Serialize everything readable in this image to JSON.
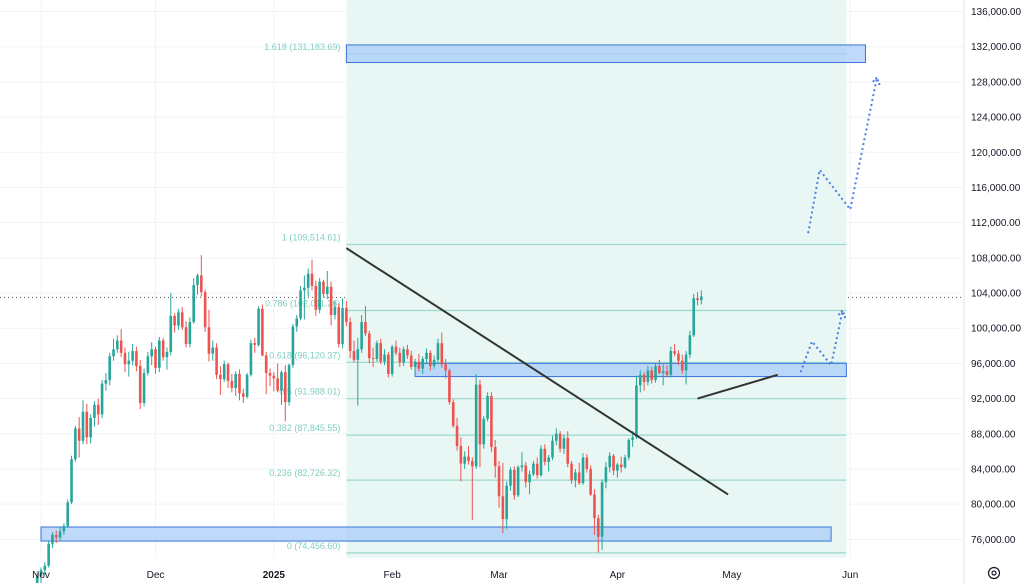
{
  "colors": {
    "up": "#26a69a",
    "down": "#ef5350",
    "fib_line": "#9ad9cc",
    "fib_label": "#7fcfc0",
    "fib_zone": "#e8f7f3",
    "box_fill": "#a9cdfa",
    "box_stroke": "#3b73d9",
    "projection": "#4a7ee0",
    "trendline": "#333333",
    "grid": "#f0f3fa",
    "axis_text": "#131722"
  },
  "chart_data": {
    "type": "candlestick",
    "instrument_price_scale": "USD",
    "ylim": [
      74000,
      136500
    ],
    "y_ticks": [
      "136,000.00",
      "132,000.00",
      "128,000.00",
      "124,000.00",
      "120,000.00",
      "116,000.00",
      "112,000.00",
      "108,000.00",
      "104,000.00",
      "100,000.00",
      "96,000.00",
      "92,000.00",
      "88,000.00",
      "84,000.00",
      "80,000.00",
      "76,000.00"
    ],
    "x_ticks": [
      {
        "label": "Nov",
        "date": "2024-11-01"
      },
      {
        "label": "Dec",
        "date": "2024-12-01"
      },
      {
        "label": "2025",
        "date": "2025-01-01"
      },
      {
        "label": "Feb",
        "date": "2025-02-01"
      },
      {
        "label": "Mar",
        "date": "2025-03-01"
      },
      {
        "label": "Apr",
        "date": "2025-04-01"
      },
      {
        "label": "May",
        "date": "2025-05-01"
      },
      {
        "label": "Jun",
        "date": "2025-06-01"
      }
    ],
    "current_price": 103500,
    "fib_levels": [
      {
        "label": "1.618 (131,183.69)",
        "value": 131183.69
      },
      {
        "label": "1 (109,514.61)",
        "value": 109514.61
      },
      {
        "label": "0.786 (102,011.26)",
        "value": 102011.26
      },
      {
        "label": "0.618 (96,120.37)",
        "value": 96120.37
      },
      {
        "label": "0.5 (91,988.01)",
        "value": 91988.01
      },
      {
        "label": "0.382 (87,845.55)",
        "value": 87845.55
      },
      {
        "label": "0.236 (82,726.32)",
        "value": 82726.32
      },
      {
        "label": "0 (74,456.60)",
        "value": 74456.6
      }
    ],
    "fib_zone_dates": [
      "2025-01-20",
      "2025-05-31"
    ],
    "zones": [
      {
        "name": "upper-target-zone",
        "from": "2025-01-20",
        "to": "2025-06-05",
        "low": 130200,
        "high": 132200
      },
      {
        "name": "resistance-zone",
        "from": "2025-02-07",
        "to": "2025-05-31",
        "low": 94500,
        "high": 96000
      },
      {
        "name": "support-zone",
        "from": "2024-11-01",
        "to": "2025-05-27",
        "low": 75800,
        "high": 77400
      }
    ],
    "trendlines": [
      {
        "name": "downtrend-line",
        "from": {
          "date": "2025-01-20",
          "value": 109100
        },
        "to": {
          "date": "2025-04-30",
          "value": 81100
        }
      },
      {
        "name": "rising-support-line",
        "from": {
          "date": "2025-04-22",
          "value": 92000
        },
        "to": {
          "date": "2025-05-13",
          "value": 94700
        }
      }
    ],
    "projections": [
      {
        "name": "projection-small",
        "points": [
          [
            "2025-05-19",
            95000
          ],
          [
            "2025-05-22",
            98500
          ],
          [
            "2025-05-27",
            95800
          ],
          [
            "2025-05-30",
            102000
          ]
        ]
      },
      {
        "name": "projection-large",
        "points": [
          [
            "2025-05-21",
            110800
          ],
          [
            "2025-05-24",
            118000
          ],
          [
            "2025-06-01",
            113500
          ],
          [
            "2025-06-08",
            128500
          ]
        ]
      }
    ],
    "candles_start_date": "2024-10-31",
    "candles": [
      [
        69500,
        72200,
        69200,
        71800
      ],
      [
        71800,
        72800,
        71000,
        72500
      ],
      [
        72500,
        73400,
        72000,
        73000
      ],
      [
        73000,
        75800,
        72800,
        75500
      ],
      [
        75500,
        76800,
        75000,
        76500
      ],
      [
        76500,
        77000,
        75600,
        76200
      ],
      [
        76200,
        77400,
        75900,
        76900
      ],
      [
        76900,
        77800,
        76500,
        77500
      ],
      [
        77500,
        80500,
        77300,
        80200
      ],
      [
        80200,
        85500,
        80000,
        85100
      ],
      [
        85100,
        88900,
        84800,
        88600
      ],
      [
        88600,
        89900,
        85300,
        87200
      ],
      [
        87200,
        91800,
        86800,
        90500
      ],
      [
        90500,
        91400,
        86800,
        87600
      ],
      [
        87600,
        90200,
        86900,
        89800
      ],
      [
        89800,
        91700,
        88800,
        91300
      ],
      [
        91300,
        92000,
        89000,
        90200
      ],
      [
        90200,
        94100,
        89800,
        93700
      ],
      [
        93700,
        94900,
        92900,
        94100
      ],
      [
        94100,
        97200,
        93500,
        96800
      ],
      [
        96800,
        98800,
        96300,
        97600
      ],
      [
        97600,
        99200,
        97200,
        98600
      ],
      [
        98600,
        99900,
        96700,
        97200
      ],
      [
        97200,
        97800,
        95000,
        95900
      ],
      [
        95900,
        97300,
        94500,
        96300
      ],
      [
        96300,
        98200,
        95800,
        97400
      ],
      [
        97400,
        97900,
        95100,
        95700
      ],
      [
        95700,
        96400,
        90800,
        91500
      ],
      [
        91500,
        95400,
        91100,
        94900
      ],
      [
        94900,
        97300,
        94600,
        96800
      ],
      [
        96800,
        98400,
        95800,
        97600
      ],
      [
        97600,
        97900,
        94800,
        95500
      ],
      [
        95500,
        99000,
        95000,
        98600
      ],
      [
        98600,
        98900,
        96300,
        96700
      ],
      [
        96700,
        97800,
        95300,
        97300
      ],
      [
        97300,
        104000,
        96900,
        101400
      ],
      [
        101400,
        101700,
        99500,
        100300
      ],
      [
        100300,
        102200,
        99800,
        101800
      ],
      [
        101800,
        102400,
        99800,
        100100
      ],
      [
        100100,
        100800,
        97800,
        98200
      ],
      [
        98200,
        101200,
        97800,
        100700
      ],
      [
        100700,
        105700,
        100500,
        104900
      ],
      [
        104900,
        106200,
        103800,
        106000
      ],
      [
        106000,
        108300,
        103600,
        104100
      ],
      [
        104100,
        104400,
        99600,
        100100
      ],
      [
        100100,
        102100,
        96200,
        97100
      ],
      [
        97100,
        98600,
        96300,
        97800
      ],
      [
        97800,
        98300,
        94200,
        94700
      ],
      [
        94700,
        95700,
        92400,
        94200
      ],
      [
        94200,
        96300,
        93900,
        95900
      ],
      [
        95900,
        96100,
        93200,
        94000
      ],
      [
        94000,
        94800,
        92700,
        93200
      ],
      [
        93200,
        95100,
        92300,
        94800
      ],
      [
        94800,
        95300,
        91800,
        92600
      ],
      [
        92600,
        93100,
        91500,
        92200
      ],
      [
        92200,
        94900,
        92000,
        94700
      ],
      [
        94700,
        98700,
        94500,
        98300
      ],
      [
        98300,
        98900,
        97200,
        98100
      ],
      [
        98100,
        102500,
        97900,
        102200
      ],
      [
        102200,
        102700,
        96800,
        96900
      ],
      [
        96900,
        97300,
        92500,
        94900
      ],
      [
        94900,
        95400,
        93400,
        94600
      ],
      [
        94600,
        95000,
        92800,
        94300
      ],
      [
        94300,
        96000,
        92700,
        92900
      ],
      [
        92900,
        95200,
        91300,
        95000
      ],
      [
        95000,
        95800,
        89400,
        91600
      ],
      [
        91600,
        96000,
        91200,
        95800
      ],
      [
        95800,
        100500,
        95500,
        100200
      ],
      [
        100200,
        101500,
        99600,
        101100
      ],
      [
        101100,
        104800,
        100900,
        104300
      ],
      [
        104300,
        106000,
        101000,
        104600
      ],
      [
        104600,
        106800,
        103600,
        106200
      ],
      [
        106200,
        107800,
        104300,
        104800
      ],
      [
        104800,
        105400,
        101400,
        102100
      ],
      [
        102100,
        105700,
        101700,
        105300
      ],
      [
        105300,
        105500,
        103500,
        103900
      ],
      [
        103900,
        106500,
        103300,
        104700
      ],
      [
        104700,
        105300,
        100300,
        101500
      ],
      [
        101500,
        103100,
        101000,
        102400
      ],
      [
        102400,
        102800,
        97800,
        98200
      ],
      [
        98200,
        103400,
        97700,
        102300
      ],
      [
        102300,
        103100,
        100200,
        100700
      ],
      [
        100700,
        101200,
        96600,
        97400
      ],
      [
        97400,
        98600,
        96100,
        96400
      ],
      [
        96400,
        98900,
        91200,
        97600
      ],
      [
        97600,
        101500,
        97200,
        100700
      ],
      [
        100700,
        102500,
        99100,
        99400
      ],
      [
        99400,
        99700,
        96000,
        96600
      ],
      [
        96600,
        97800,
        95600,
        96500
      ],
      [
        96500,
        98600,
        96200,
        98300
      ],
      [
        98300,
        98800,
        95900,
        96200
      ],
      [
        96200,
        97600,
        95800,
        97000
      ],
      [
        97000,
        97300,
        94400,
        94800
      ],
      [
        94800,
        98100,
        94500,
        97900
      ],
      [
        97900,
        98600,
        96900,
        97200
      ],
      [
        97200,
        97800,
        95600,
        96100
      ],
      [
        96100,
        97900,
        95700,
        97600
      ],
      [
        97600,
        98100,
        96500,
        96900
      ],
      [
        96900,
        97400,
        95300,
        95600
      ],
      [
        95600,
        96500,
        94900,
        96200
      ],
      [
        96200,
        97100,
        95100,
        95400
      ],
      [
        95400,
        96800,
        94800,
        96500
      ],
      [
        96500,
        97700,
        96000,
        97200
      ],
      [
        97200,
        97500,
        95200,
        95700
      ],
      [
        95700,
        96900,
        95400,
        96400
      ],
      [
        96400,
        98800,
        96000,
        98300
      ],
      [
        98300,
        99500,
        95500,
        95900
      ],
      [
        95900,
        96500,
        94300,
        95200
      ],
      [
        95200,
        95400,
        91300,
        91600
      ],
      [
        91600,
        91900,
        88700,
        88900
      ],
      [
        88900,
        89800,
        86100,
        86600
      ],
      [
        86600,
        87600,
        82600,
        84600
      ],
      [
        84600,
        86000,
        84000,
        85400
      ],
      [
        85400,
        86600,
        84500,
        84900
      ],
      [
        84900,
        85300,
        78200,
        84300
      ],
      [
        84300,
        94800,
        84000,
        93600
      ],
      [
        93600,
        94100,
        84200,
        86800
      ],
      [
        86800,
        90000,
        86300,
        89700
      ],
      [
        89700,
        92700,
        89400,
        92300
      ],
      [
        92300,
        92700,
        85900,
        86500
      ],
      [
        86500,
        87300,
        83000,
        84300
      ],
      [
        84300,
        84900,
        79600,
        80900
      ],
      [
        80900,
        84700,
        76700,
        78300
      ],
      [
        78300,
        82600,
        77200,
        82100
      ],
      [
        82100,
        84200,
        81500,
        83900
      ],
      [
        83900,
        84300,
        80500,
        81000
      ],
      [
        81000,
        84400,
        80800,
        84200
      ],
      [
        84200,
        85900,
        83700,
        84400
      ],
      [
        84400,
        84800,
        81900,
        82500
      ],
      [
        82500,
        83800,
        81100,
        83400
      ],
      [
        83400,
        84900,
        83200,
        84600
      ],
      [
        84600,
        85300,
        82900,
        83300
      ],
      [
        83300,
        86700,
        83100,
        86300
      ],
      [
        86300,
        86800,
        84400,
        84800
      ],
      [
        84800,
        85600,
        83700,
        85300
      ],
      [
        85300,
        87800,
        85000,
        87200
      ],
      [
        87200,
        88600,
        86700,
        88000
      ],
      [
        88000,
        88300,
        85900,
        86300
      ],
      [
        86300,
        87900,
        85700,
        87500
      ],
      [
        87500,
        88300,
        84200,
        84600
      ],
      [
        84600,
        84900,
        82300,
        82700
      ],
      [
        82700,
        84000,
        81900,
        83600
      ],
      [
        83600,
        84700,
        82200,
        82400
      ],
      [
        82400,
        85800,
        82200,
        85300
      ],
      [
        85300,
        85700,
        83600,
        84000
      ],
      [
        84000,
        84400,
        80900,
        81100
      ],
      [
        81100,
        81700,
        76500,
        78400
      ],
      [
        78400,
        78800,
        74500,
        76300
      ],
      [
        76300,
        82800,
        74800,
        82500
      ],
      [
        82500,
        84800,
        81800,
        84200
      ],
      [
        84200,
        85900,
        83600,
        85500
      ],
      [
        85500,
        85700,
        83300,
        83800
      ],
      [
        83800,
        84700,
        83000,
        84500
      ],
      [
        84500,
        85400,
        83600,
        84200
      ],
      [
        84200,
        85600,
        84000,
        85300
      ],
      [
        85300,
        87500,
        85000,
        87300
      ],
      [
        87300,
        88300,
        86500,
        87600
      ],
      [
        87600,
        94600,
        87400,
        93500
      ],
      [
        93500,
        95200,
        92700,
        94700
      ],
      [
        94700,
        95000,
        92900,
        93900
      ],
      [
        93900,
        95700,
        93500,
        95200
      ],
      [
        95200,
        95600,
        93700,
        94100
      ],
      [
        94100,
        96000,
        93800,
        95700
      ],
      [
        95700,
        96400,
        94800,
        94900
      ],
      [
        94900,
        95900,
        93500,
        95100
      ],
      [
        95100,
        95800,
        94400,
        94700
      ],
      [
        94700,
        97900,
        94400,
        97400
      ],
      [
        97400,
        98200,
        96800,
        97100
      ],
      [
        97100,
        97500,
        95800,
        96300
      ],
      [
        96300,
        97000,
        94800,
        95200
      ],
      [
        95200,
        97400,
        93600,
        97000
      ],
      [
        97000,
        99700,
        96600,
        99200
      ],
      [
        99200,
        103900,
        99000,
        103400
      ],
      [
        103400,
        104100,
        102600,
        103200
      ],
      [
        103200,
        104300,
        102700,
        103600
      ]
    ]
  }
}
